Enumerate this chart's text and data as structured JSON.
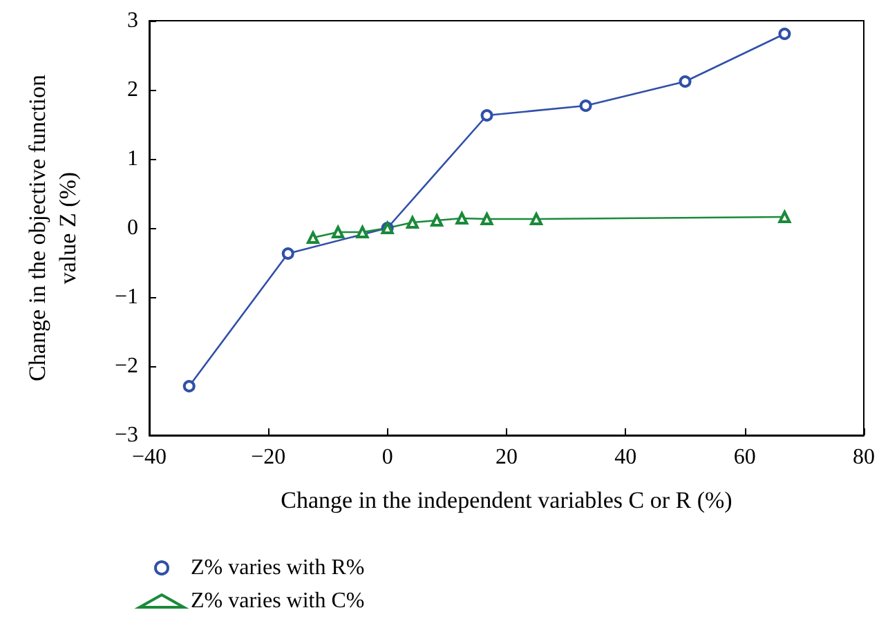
{
  "chart_data": {
    "type": "line",
    "xlabel": "Change in the independent variables C or R (%)",
    "ylabel": "Change in the objective function\nvalue Z (%)",
    "series": [
      {
        "name": "Z% varies with R%",
        "color": "#3050a8",
        "marker": "circle",
        "x": [
          -33.3,
          -16.7,
          0,
          16.7,
          33.3,
          50,
          66.7
        ],
        "values": [
          -2.29,
          -0.37,
          0,
          1.63,
          1.77,
          2.12,
          2.81
        ]
      },
      {
        "name": "Z% varies with C%",
        "color": "#1a8a3a",
        "marker": "triangle",
        "x": [
          -12.5,
          -8.3,
          -4.2,
          0,
          4.2,
          8.3,
          12.5,
          16.7,
          25,
          66.7
        ],
        "values": [
          -0.14,
          -0.06,
          -0.06,
          0,
          0.08,
          0.11,
          0.14,
          0.13,
          0.13,
          0.16
        ]
      }
    ],
    "xlim": [
      -40,
      80
    ],
    "xticks": [
      -40,
      -20,
      0,
      20,
      40,
      60,
      80
    ],
    "ylim": [
      -3,
      3
    ],
    "yticks": [
      -3,
      -2,
      -1,
      0,
      1,
      2,
      3
    ],
    "grid": false,
    "legend": "bottom left",
    "line_style": "solid"
  }
}
